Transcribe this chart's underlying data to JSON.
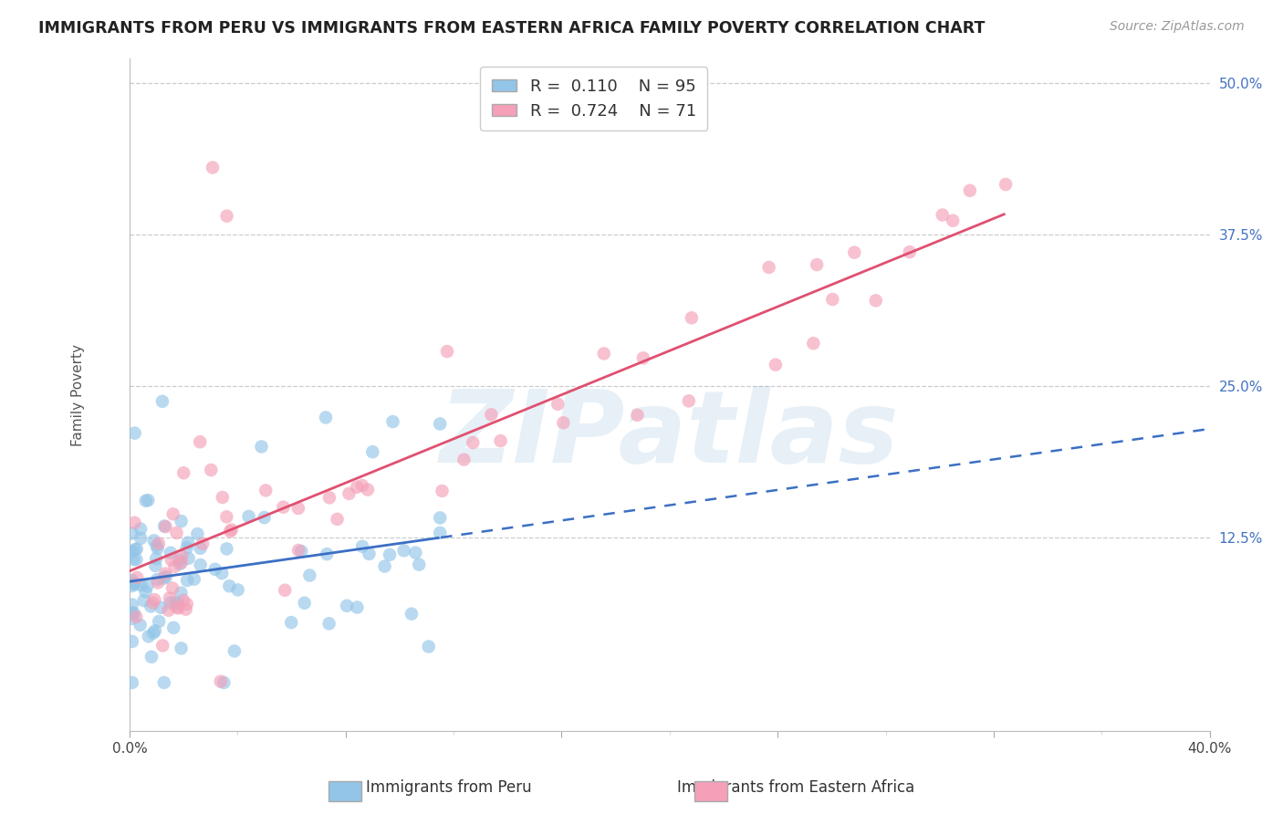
{
  "title": "IMMIGRANTS FROM PERU VS IMMIGRANTS FROM EASTERN AFRICA FAMILY POVERTY CORRELATION CHART",
  "source": "Source: ZipAtlas.com",
  "ylabel": "Family Poverty",
  "xlim": [
    0.0,
    0.4
  ],
  "ylim": [
    -0.035,
    0.52
  ],
  "ytick_positions": [
    0.125,
    0.25,
    0.375,
    0.5
  ],
  "ytick_labels": [
    "12.5%",
    "25.0%",
    "37.5%",
    "50.0%"
  ],
  "r_peru": 0.11,
  "n_peru": 95,
  "r_africa": 0.724,
  "n_africa": 71,
  "color_peru": "#92C5E8",
  "color_africa": "#F4A0B8",
  "color_peru_line": "#3B6FC4",
  "color_africa_line": "#E05070",
  "watermark": "ZIPatlas",
  "watermark_color_r": 180,
  "watermark_color_g": 210,
  "watermark_color_b": 230,
  "seed": 17
}
